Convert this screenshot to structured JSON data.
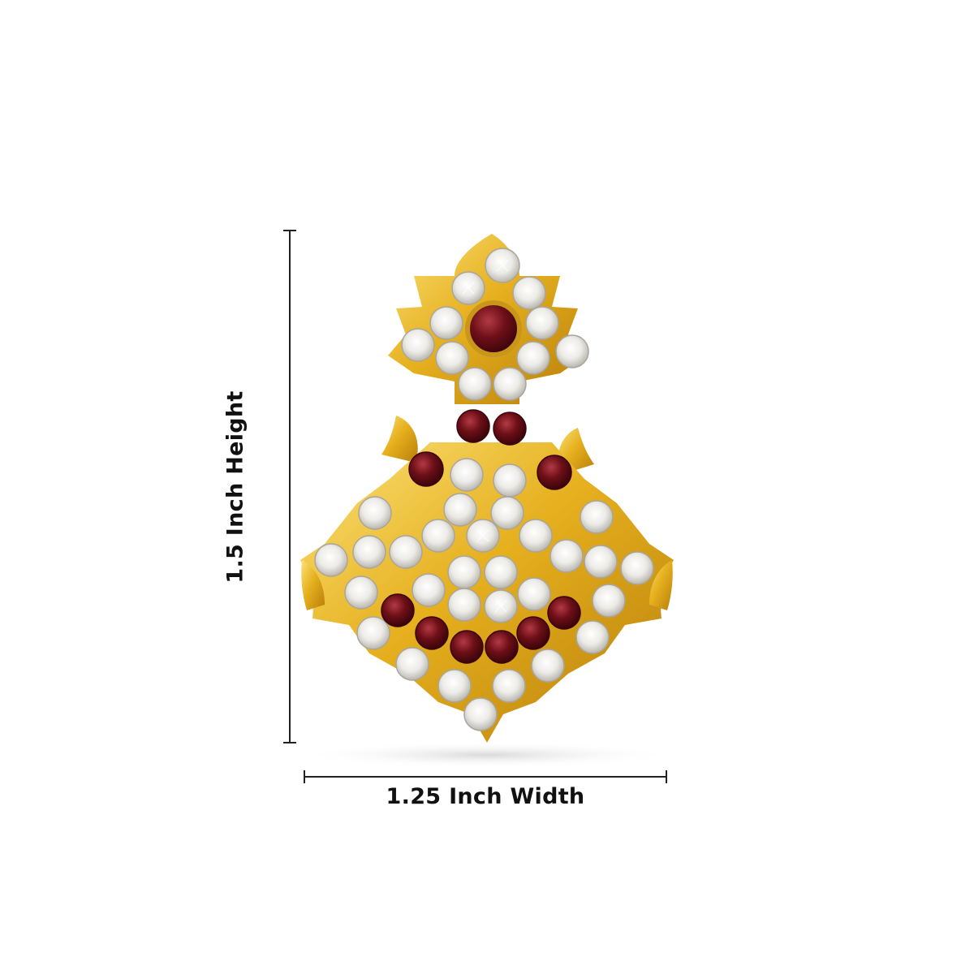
{
  "dimensions": {
    "height_label": "1.5 Inch Height",
    "width_label": "1.25 Inch Width"
  },
  "product": {
    "colors": {
      "gold": "#e6b01e",
      "gold_dark": "#b77e0a",
      "crystal": "#f4f2ee",
      "ruby": "#6e0f18"
    }
  }
}
